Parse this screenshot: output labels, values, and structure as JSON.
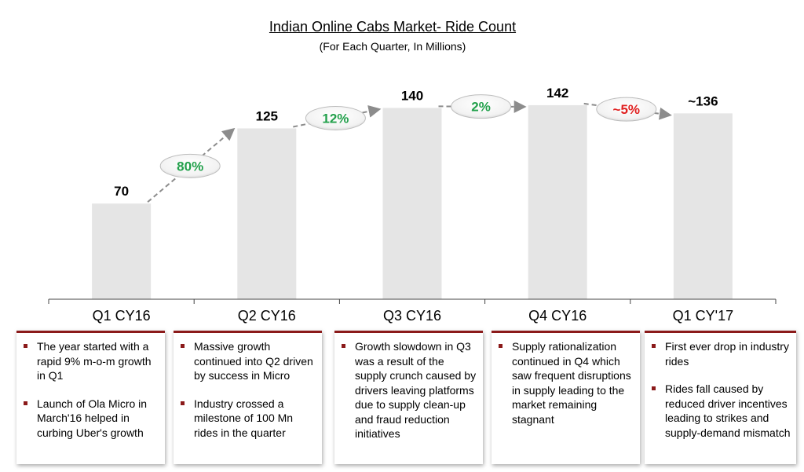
{
  "title": "Indian Online Cabs Market- Ride Count",
  "subtitle": "(For Each Quarter, In Millions)",
  "chart_data": {
    "type": "bar",
    "title": "Indian Online Cabs Market- Ride Count",
    "subtitle": "(For Each Quarter, In Millions)",
    "categories": [
      "Q1 CY16",
      "Q2 CY16",
      "Q3 CY16",
      "Q4 CY16",
      "Q1 CY'17"
    ],
    "values": [
      70,
      125,
      140,
      142,
      136
    ],
    "value_labels": [
      "70",
      "125",
      "140",
      "142",
      "~136"
    ],
    "growth_labels": [
      "80%",
      "12%",
      "2%",
      "~5%"
    ],
    "growth_direction": [
      "up",
      "up",
      "up",
      "down"
    ],
    "colors": {
      "bar": "#e5e5e5",
      "positive": "#22a04b",
      "negative": "#e02020",
      "accent": "#8b1a1a"
    }
  },
  "boxes": [
    {
      "bullets": [
        "The year started with a rapid 9% m-o-m growth in Q1",
        "Launch of Ola Micro in March'16 helped in curbing Uber's growth"
      ]
    },
    {
      "bullets": [
        "Massive growth continued into Q2 driven by success in Micro",
        "Industry crossed a milestone of 100 Mn rides in the quarter"
      ]
    },
    {
      "bullets": [
        "Growth slowdown in Q3 was a result of the supply crunch caused by drivers leaving platforms due to supply clean-up and fraud reduction initiatives"
      ]
    },
    {
      "bullets": [
        "Supply rationalization continued in Q4 which saw frequent disruptions in supply leading to the market remaining stagnant"
      ]
    },
    {
      "bullets": [
        "First ever drop in industry rides",
        "Rides fall caused by reduced driver incentives leading to strikes and supply-demand mismatch"
      ]
    }
  ]
}
